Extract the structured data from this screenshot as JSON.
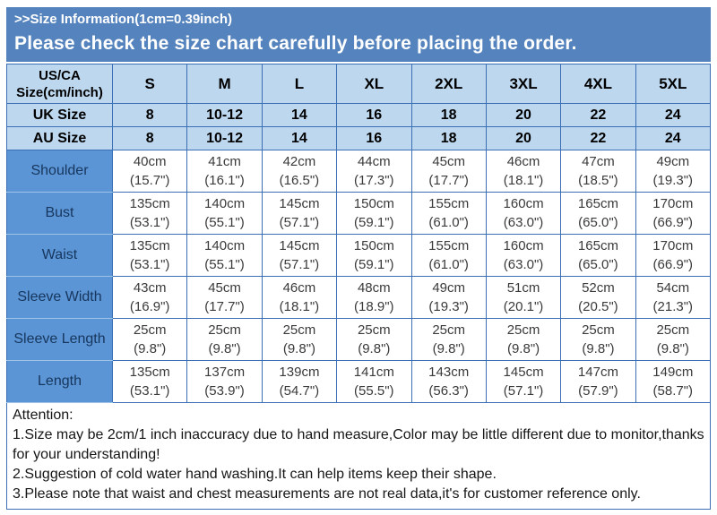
{
  "banner": {
    "line1": ">>Size Information(1cm=0.39inch)",
    "line2": "Please check the size chart carefully before placing the order."
  },
  "colors": {
    "banner_bg": "#5583BD",
    "header_bg": "#BDD7EE",
    "label_bg": "#5B95D5",
    "grid_border": "#3B6FB5",
    "label_text": "#17365D"
  },
  "table": {
    "corner_label": "US/CA Size(cm/inch)",
    "size_columns": [
      "S",
      "M",
      "L",
      "XL",
      "2XL",
      "3XL",
      "4XL",
      "5XL"
    ],
    "size_rows": [
      {
        "label": "UK Size",
        "values": [
          "8",
          "10-12",
          "14",
          "16",
          "18",
          "20",
          "22",
          "24"
        ]
      },
      {
        "label": "AU Size",
        "values": [
          "8",
          "10-12",
          "14",
          "16",
          "18",
          "20",
          "22",
          "24"
        ]
      }
    ],
    "measurement_rows": [
      {
        "label": "Shoulder",
        "cm": [
          "40cm",
          "41cm",
          "42cm",
          "44cm",
          "45cm",
          "46cm",
          "47cm",
          "49cm"
        ],
        "inch": [
          "(15.7\")",
          "(16.1\")",
          "(16.5\")",
          "(17.3\")",
          "(17.7\")",
          "(18.1\")",
          "(18.5\")",
          "(19.3\")"
        ]
      },
      {
        "label": "Bust",
        "cm": [
          "135cm",
          "140cm",
          "145cm",
          "150cm",
          "155cm",
          "160cm",
          "165cm",
          "170cm"
        ],
        "inch": [
          "(53.1\")",
          "(55.1\")",
          "(57.1\")",
          "(59.1\")",
          "(61.0\")",
          "(63.0\")",
          "(65.0\")",
          "(66.9\")"
        ]
      },
      {
        "label": "Waist",
        "cm": [
          "135cm",
          "140cm",
          "145cm",
          "150cm",
          "155cm",
          "160cm",
          "165cm",
          "170cm"
        ],
        "inch": [
          "(53.1\")",
          "(55.1\")",
          "(57.1\")",
          "(59.1\")",
          "(61.0\")",
          "(63.0\")",
          "(65.0\")",
          "(66.9\")"
        ]
      },
      {
        "label": "Sleeve Width",
        "cm": [
          "43cm",
          "45cm",
          "46cm",
          "48cm",
          "49cm",
          "51cm",
          "52cm",
          "54cm"
        ],
        "inch": [
          "(16.9\")",
          "(17.7\")",
          "(18.1\")",
          "(18.9\")",
          "(19.3\")",
          "(20.1\")",
          "(20.5\")",
          "(21.3\")"
        ]
      },
      {
        "label": "Sleeve Length",
        "cm": [
          "25cm",
          "25cm",
          "25cm",
          "25cm",
          "25cm",
          "25cm",
          "25cm",
          "25cm"
        ],
        "inch": [
          "(9.8\")",
          "(9.8\")",
          "(9.8\")",
          "(9.8\")",
          "(9.8\")",
          "(9.8\")",
          "(9.8\")",
          "(9.8\")"
        ]
      },
      {
        "label": "Length",
        "cm": [
          "135cm",
          "137cm",
          "139cm",
          "141cm",
          "143cm",
          "145cm",
          "147cm",
          "149cm"
        ],
        "inch": [
          "(53.1\")",
          "(53.9\")",
          "(54.7\")",
          "(55.5\")",
          "(56.3\")",
          "(57.1\")",
          "(57.9\")",
          "(58.7\")"
        ]
      }
    ]
  },
  "attention": {
    "title": "Attention:",
    "notes": [
      "1.Size may be 2cm/1 inch inaccuracy due to hand measure,Color may be little different due to monitor,thanks for your understanding!",
      "2.Suggestion of cold water hand washing.It can help items keep their shape.",
      "3.Please note that waist and chest measurements are not real data,it's for customer reference only."
    ]
  }
}
